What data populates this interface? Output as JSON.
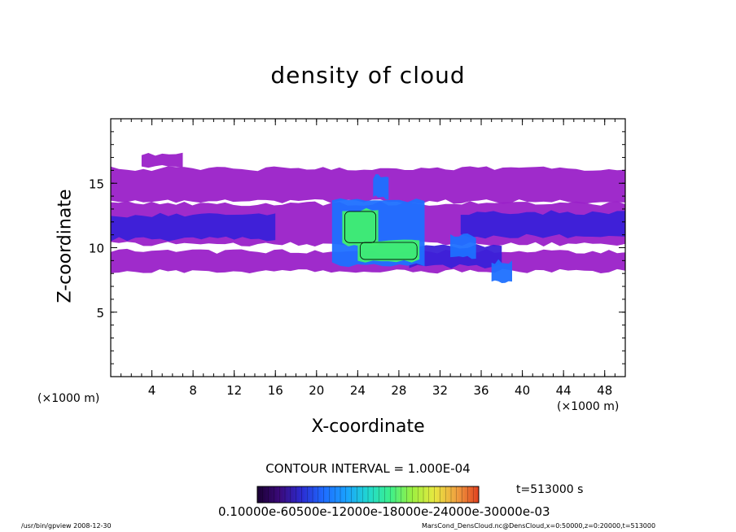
{
  "chart_data": {
    "type": "heatmap",
    "title": "density of cloud",
    "xlabel": "X-coordinate",
    "ylabel": "Z-coordinate",
    "x_unit": "(×1000 m)",
    "x_unit_right": "(×1000 m)",
    "xlim": [
      0,
      50
    ],
    "ylim": [
      0,
      20
    ],
    "x_ticks": [
      4,
      8,
      12,
      16,
      20,
      24,
      28,
      32,
      36,
      40,
      44,
      48
    ],
    "y_ticks": [
      5,
      10,
      15
    ],
    "contour_interval": "CONTOUR INTERVAL = 1.000E-04",
    "time_label": "t=513000 s",
    "colorbar_labels": "0.10000e-60500e-12000e-18000e-24000e-30000e-03",
    "colorbar_colors": [
      "#1a0033",
      "#3b0a7a",
      "#2b2bd0",
      "#1e6cff",
      "#1aa0ff",
      "#20d8d0",
      "#3cf08c",
      "#9cf040",
      "#e8e840",
      "#f0a040",
      "#e04020"
    ],
    "cloud_colors": {
      "faint": "#9a20c8",
      "light": "#7a1ab8",
      "mid": "#3a20d8",
      "high": "#1e70ff",
      "peak": "#20d8a0",
      "core": "#40f070"
    },
    "layers": [
      {
        "level": "faint",
        "regions": [
          {
            "x": [
              0,
              50
            ],
            "z": [
              13.5,
              16.2
            ]
          },
          {
            "x": [
              3,
              7
            ],
            "z": [
              16.2,
              17.3
            ]
          },
          {
            "x": [
              0,
              50
            ],
            "z": [
              10.2,
              13.5
            ]
          },
          {
            "x": [
              0,
              50
            ],
            "z": [
              8.1,
              9.8
            ]
          }
        ]
      },
      {
        "level": "mid",
        "regions": [
          {
            "x": [
              0,
              16
            ],
            "z": [
              10.6,
              12.6
            ]
          },
          {
            "x": [
              34,
              50
            ],
            "z": [
              10.8,
              12.8
            ]
          },
          {
            "x": [
              29,
              38
            ],
            "z": [
              8.5,
              10.2
            ]
          }
        ]
      },
      {
        "level": "high",
        "regions": [
          {
            "x": [
              21.5,
              30.5
            ],
            "z": [
              8.6,
              13.8
            ]
          },
          {
            "x": [
              25.5,
              27
            ],
            "z": [
              13.8,
              15.6
            ]
          },
          {
            "x": [
              33,
              35.5
            ],
            "z": [
              9.2,
              11.0
            ]
          },
          {
            "x": [
              37,
              39
            ],
            "z": [
              7.2,
              9.0
            ]
          }
        ]
      },
      {
        "level": "core",
        "regions": [
          {
            "x": [
              22.5,
              26
            ],
            "z": [
              10.2,
              13.0
            ]
          },
          {
            "x": [
              24,
              30
            ],
            "z": [
              8.9,
              10.6
            ]
          }
        ]
      }
    ]
  },
  "footer": {
    "left": "/usr/bin/gpview  2008-12-30",
    "right": "MarsCond_DensCloud.nc@DensCloud,x=0:50000,z=0:20000,t=513000"
  }
}
